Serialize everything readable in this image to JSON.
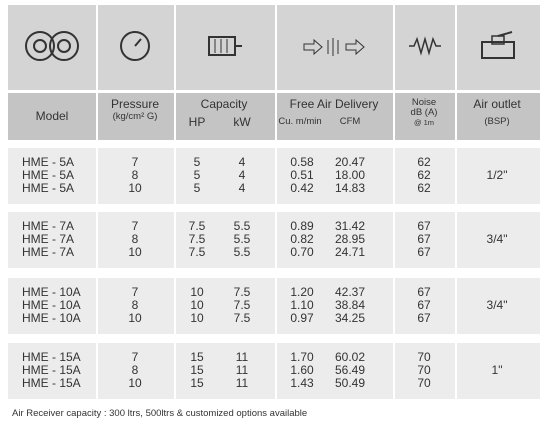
{
  "header": {
    "model": "Model",
    "pressure": "Pressure",
    "pressure_unit": "(kg/cm² G)",
    "capacity": "Capacity",
    "hp": "HP",
    "kw": "kW",
    "free_air": "Free Air Delivery",
    "cum": "Cu. m/min",
    "cfm": "CFM",
    "noise": "Noise",
    "noise_unit": "dB (A)",
    "noise_note": "@ 1m",
    "outlet": "Air outlet",
    "outlet_unit": "(BSP)"
  },
  "groups": [
    {
      "rows": [
        [
          "HME - 5A",
          "7",
          "5",
          "4",
          "0.58",
          "20.47",
          "62"
        ],
        [
          "HME - 5A",
          "8",
          "5",
          "4",
          "0.51",
          "18.00",
          "62"
        ],
        [
          "HME - 5A",
          "10",
          "5",
          "4",
          "0.42",
          "14.83",
          "62"
        ]
      ],
      "outlet": "1/2\""
    },
    {
      "rows": [
        [
          "HME - 7A",
          "7",
          "7.5",
          "5.5",
          "0.89",
          "31.42",
          "67"
        ],
        [
          "HME - 7A",
          "8",
          "7.5",
          "5.5",
          "0.82",
          "28.95",
          "67"
        ],
        [
          "HME - 7A",
          "10",
          "7.5",
          "5.5",
          "0.70",
          "24.71",
          "67"
        ]
      ],
      "outlet": "3/4\""
    },
    {
      "rows": [
        [
          "HME - 10A",
          "7",
          "10",
          "7.5",
          "1.20",
          "42.37",
          "67"
        ],
        [
          "HME - 10A",
          "8",
          "10",
          "7.5",
          "1.10",
          "38.84",
          "67"
        ],
        [
          "HME - 10A",
          "10",
          "10",
          "7.5",
          "0.97",
          "34.25",
          "67"
        ]
      ],
      "outlet": "3/4\""
    },
    {
      "rows": [
        [
          "HME - 15A",
          "7",
          "15",
          "11",
          "1.70",
          "60.02",
          "70"
        ],
        [
          "HME - 15A",
          "8",
          "15",
          "11",
          "1.60",
          "56.49",
          "70"
        ],
        [
          "HME - 15A",
          "10",
          "15",
          "11",
          "1.43",
          "50.49",
          "70"
        ]
      ],
      "outlet": "1\""
    }
  ],
  "footer": "Air Receiver capacity : 300 ltrs, 500ltrs & customized options available"
}
